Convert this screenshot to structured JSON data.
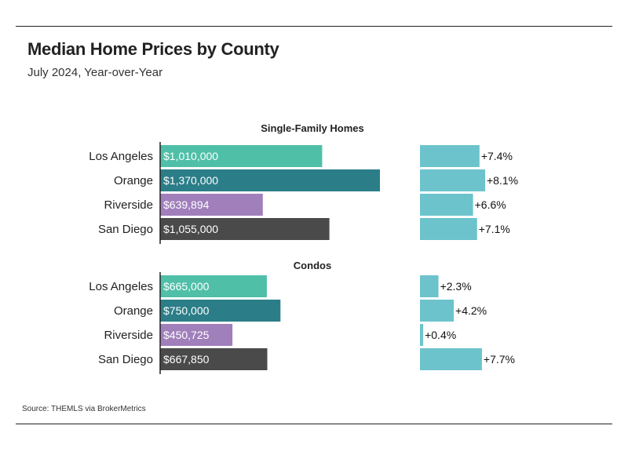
{
  "header": {
    "title": "Median Home Prices by County",
    "subtitle": "July 2024, Year-over-Year"
  },
  "footer": {
    "source": "Source:  THEMLS via BrokerMetrics"
  },
  "colors": {
    "Los Angeles": "#4fbfa8",
    "Orange": "#2b7e88",
    "Riverside": "#a07fbb",
    "San Diego": "#4a4a4a",
    "change": "#6cc3cc"
  },
  "chart_data": [
    {
      "type": "bar",
      "orientation": "horizontal",
      "title": "Single-Family Homes",
      "categories": [
        "Los Angeles",
        "Orange",
        "Riverside",
        "San Diego"
      ],
      "series": [
        {
          "values": [
            1010000,
            1370000,
            639894,
            1055000
          ],
          "labels": [
            "$1,010,000",
            "$1,370,000",
            "$639,894",
            "$1,055,000"
          ]
        },
        {
          "values": [
            7.4,
            8.1,
            6.6,
            7.1
          ],
          "labels": [
            "+7.4%",
            "+8.1%",
            "+6.6%",
            "+7.1%"
          ]
        }
      ]
    },
    {
      "type": "bar",
      "orientation": "horizontal",
      "title": "Condos",
      "categories": [
        "Los Angeles",
        "Orange",
        "Riverside",
        "San Diego"
      ],
      "series": [
        {
          "values": [
            665000,
            750000,
            450725,
            667850
          ],
          "labels": [
            "$665,000",
            "$750,000",
            "$450,725",
            "$667,850"
          ]
        },
        {
          "values": [
            2.3,
            4.2,
            0.4,
            7.7
          ],
          "labels": [
            "+2.3%",
            "+4.2%",
            "+0.4%",
            "+7.7%"
          ]
        }
      ]
    }
  ]
}
